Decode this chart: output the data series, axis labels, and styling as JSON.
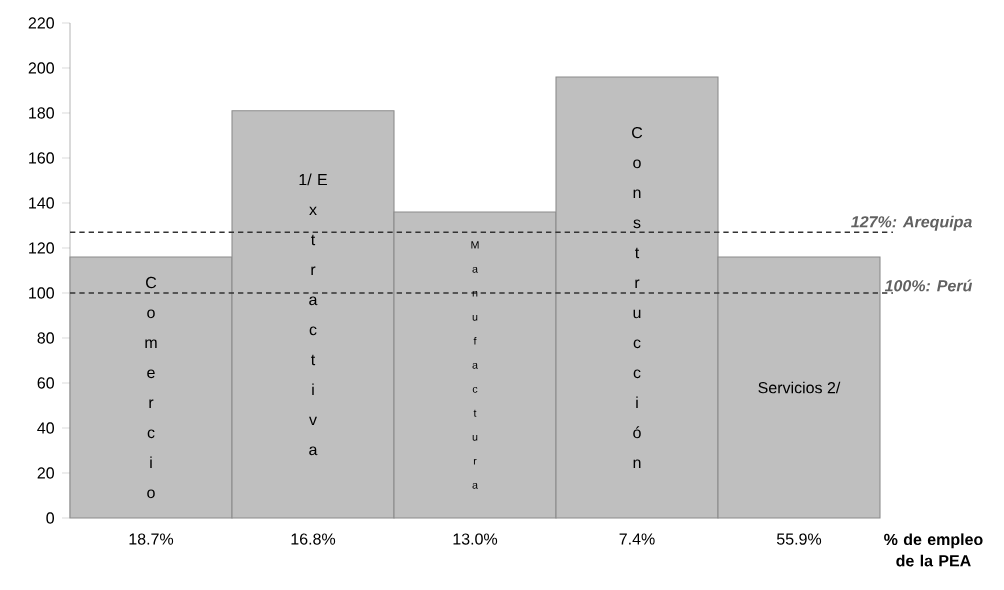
{
  "chart_data": {
    "type": "bar",
    "categories": [
      "18.7%",
      "16.8%",
      "13.0%",
      "7.4%",
      "55.9%"
    ],
    "values": [
      116,
      181,
      136,
      196,
      116
    ],
    "color": "#bfbfbf",
    "ylim": [
      0,
      220
    ],
    "yticks": [
      0,
      20,
      40,
      60,
      80,
      100,
      120,
      140,
      160,
      180,
      200,
      220
    ],
    "xlabel": "% de empleo de la PEA",
    "ref_lines": [
      {
        "axis": "y",
        "value": 127,
        "label": "127%: Arequipa",
        "color": "#333333",
        "line_style": "dashed"
      },
      {
        "axis": "y",
        "value": 100,
        "label": "100%: Perú",
        "color": "#333333",
        "line_style": "dashed"
      }
    ],
    "annotations": [
      "Comercio",
      "1/ Extractiva",
      "Manufactura",
      "Construcción",
      "Servicios 2/"
    ],
    "grid": false
  }
}
